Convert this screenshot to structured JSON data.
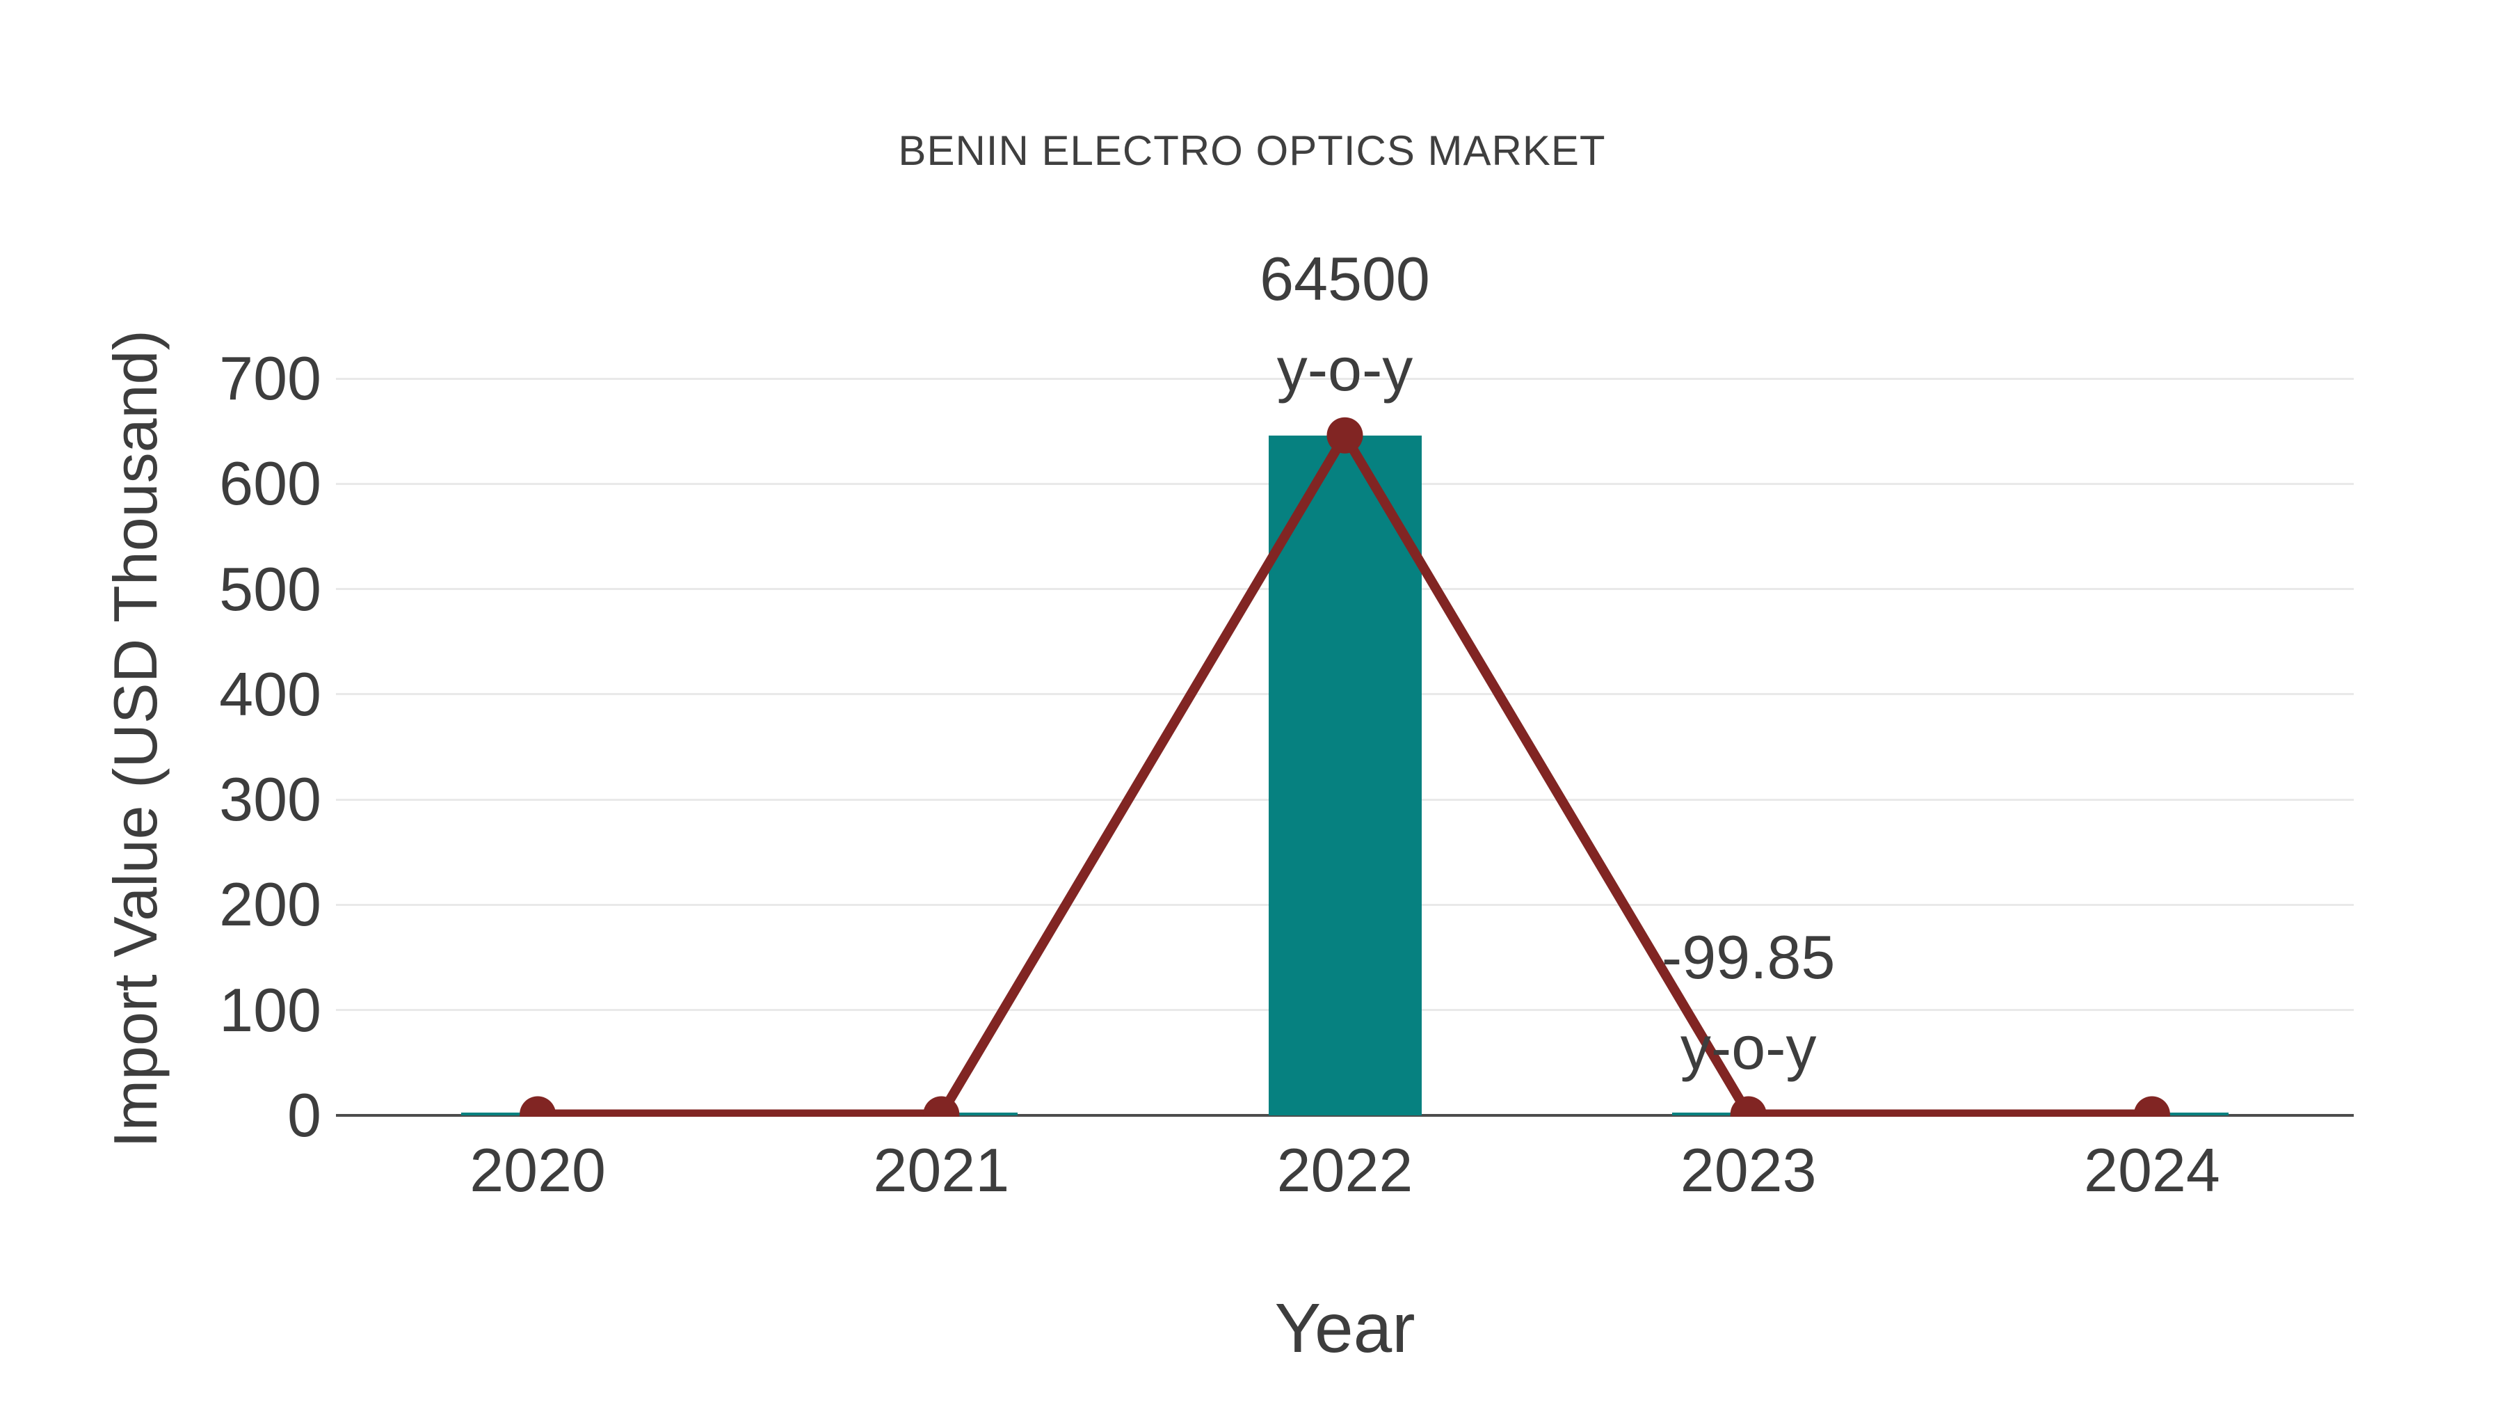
{
  "title": "BENIN ELECTRO OPTICS MARKET",
  "chart_data": {
    "type": "bar",
    "subtype": "bar-with-line-overlay",
    "title": "BENIN ELECTRO OPTICS MARKET",
    "xlabel": "Year",
    "ylabel": "Import Value (USD Thousand)",
    "categories": [
      "2020",
      "2021",
      "2022",
      "2023",
      "2024"
    ],
    "series": [
      {
        "name": "Import Value bars",
        "type": "bar",
        "color": "#068180",
        "values": [
          1,
          1,
          646,
          1,
          1
        ]
      },
      {
        "name": "Import Value line",
        "type": "line",
        "color": "#812523",
        "values": [
          1,
          1,
          646,
          1,
          1
        ]
      }
    ],
    "ylim": [
      0,
      700
    ],
    "yticks": [
      0,
      100,
      200,
      300,
      400,
      500,
      600,
      700
    ],
    "grid": "horizontal",
    "legend_position": "none",
    "annotations": [
      {
        "category": "2022",
        "lines": [
          "64500",
          "y-o-y"
        ]
      },
      {
        "category": "2023",
        "lines": [
          "-99.85",
          "y-o-y"
        ]
      }
    ],
    "colors": {
      "bar": "#068180",
      "line": "#812523",
      "marker": "#812523",
      "gridline": "#e9e9e9",
      "axis_line": "#4d4d4d",
      "text": "#3d3d3d"
    }
  }
}
